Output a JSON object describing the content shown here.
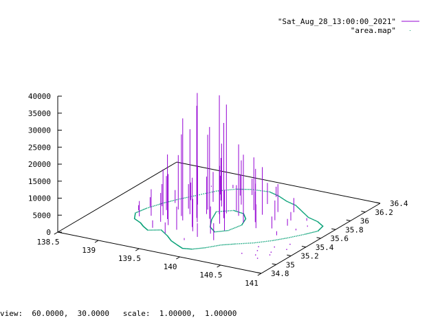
{
  "status_bar": {
    "view_text": "view:  60.0000,  30.0000   scale:  1.00000,  1.00000"
  },
  "chart_data": {
    "type": "scatter",
    "title": "",
    "view": {
      "rot_x": 60,
      "rot_z": 30,
      "scale": 1,
      "scale_z": 1
    },
    "xlabel": "",
    "ylabel": "",
    "zlabel": "",
    "xlim": [
      138.5,
      141
    ],
    "ylim": [
      34.8,
      36.4
    ],
    "zlim": [
      0,
      40000
    ],
    "x_ticks": [
      "138.5",
      "139",
      "139.5",
      "140",
      "140.5",
      "141"
    ],
    "y_ticks": [
      "34.8",
      "35",
      "35.2",
      "35.4",
      "35.6",
      "35.8",
      "36",
      "36.2",
      "36.4"
    ],
    "z_ticks": [
      "0",
      "5000",
      "10000",
      "15000",
      "20000",
      "25000",
      "30000",
      "35000",
      "40000"
    ],
    "legend": {
      "position": "top-right"
    },
    "series": [
      {
        "name": "\"Sat_Aug_28_13:00:00_2021\"",
        "color": "#9400d3",
        "style": "impulses",
        "points": [
          [
            139.62,
            35.45,
            38000
          ],
          [
            139.7,
            35.66,
            35000
          ],
          [
            139.55,
            35.52,
            33000
          ],
          [
            139.46,
            35.43,
            30000
          ],
          [
            139.75,
            35.7,
            32000
          ],
          [
            139.43,
            35.56,
            25000
          ],
          [
            139.8,
            35.61,
            28000
          ],
          [
            139.68,
            35.55,
            27000
          ],
          [
            139.38,
            35.5,
            24000
          ],
          [
            139.52,
            35.7,
            22000
          ],
          [
            139.9,
            35.7,
            21000
          ],
          [
            140.05,
            35.6,
            20000
          ],
          [
            139.3,
            35.4,
            19000
          ],
          [
            139.6,
            35.8,
            18500
          ],
          [
            139.85,
            35.5,
            17000
          ],
          [
            139.25,
            35.6,
            16000
          ],
          [
            139.95,
            35.85,
            15500
          ],
          [
            139.4,
            35.3,
            15000
          ],
          [
            139.65,
            35.35,
            14500
          ],
          [
            140.1,
            35.8,
            14000
          ],
          [
            139.2,
            35.45,
            13500
          ],
          [
            139.75,
            35.9,
            13000
          ],
          [
            139.5,
            35.9,
            12500
          ],
          [
            140.0,
            35.4,
            12000
          ],
          [
            139.35,
            35.75,
            11500
          ],
          [
            139.58,
            35.62,
            11000
          ],
          [
            139.88,
            35.95,
            10500
          ],
          [
            139.15,
            35.55,
            10000
          ],
          [
            139.72,
            35.28,
            9500
          ],
          [
            140.15,
            35.65,
            9000
          ],
          [
            139.45,
            35.85,
            8800
          ],
          [
            139.28,
            35.33,
            8500
          ],
          [
            140.2,
            35.9,
            8200
          ],
          [
            139.92,
            35.3,
            8000
          ],
          [
            139.1,
            35.4,
            7800
          ],
          [
            139.8,
            35.78,
            7500
          ],
          [
            139.33,
            35.65,
            7200
          ],
          [
            140.25,
            35.55,
            7000
          ],
          [
            139.55,
            35.25,
            6800
          ],
          [
            139.05,
            35.6,
            6500
          ],
          [
            139.98,
            36.0,
            6200
          ],
          [
            139.6,
            36.05,
            6000
          ],
          [
            140.3,
            35.75,
            5800
          ],
          [
            139.4,
            36.0,
            5500
          ],
          [
            139.22,
            35.8,
            5200
          ],
          [
            140.05,
            35.2,
            5000
          ],
          [
            139.7,
            36.1,
            4800
          ],
          [
            139.0,
            35.35,
            4500
          ],
          [
            140.35,
            35.95,
            4200
          ],
          [
            139.85,
            35.2,
            4000
          ],
          [
            139.12,
            35.7,
            3800
          ],
          [
            140.4,
            35.6,
            3500
          ],
          [
            139.5,
            35.15,
            3200
          ],
          [
            139.95,
            36.15,
            3000
          ],
          [
            138.95,
            35.55,
            2800
          ],
          [
            140.45,
            35.8,
            2500
          ],
          [
            139.3,
            35.2,
            2200
          ],
          [
            140.5,
            35.7,
            2000
          ],
          [
            139.65,
            36.2,
            1800
          ],
          [
            138.9,
            35.45,
            1500
          ],
          [
            140.55,
            35.5,
            1200
          ],
          [
            139.42,
            36.15,
            1000
          ],
          [
            140.6,
            35.85,
            800
          ],
          [
            139.78,
            35.1,
            600
          ],
          [
            140.65,
            35.65,
            500
          ],
          [
            140.7,
            35.75,
            400
          ],
          [
            139.2,
            36.1,
            300
          ]
        ]
      },
      {
        "name": "\"area.map\"",
        "color": "#009e73",
        "style": "dots",
        "outline": [
          [
            139.6,
            36.2
          ],
          [
            139.45,
            36.15
          ],
          [
            139.3,
            36.05
          ],
          [
            139.18,
            35.9
          ],
          [
            139.08,
            35.78
          ],
          [
            139.0,
            35.66
          ],
          [
            138.93,
            35.52
          ],
          [
            138.9,
            35.4
          ],
          [
            138.98,
            35.3
          ],
          [
            139.1,
            35.25
          ],
          [
            139.18,
            35.2
          ],
          [
            139.28,
            35.15
          ],
          [
            139.4,
            35.2
          ],
          [
            139.55,
            35.12
          ],
          [
            139.66,
            35.05
          ],
          [
            139.78,
            35.0
          ],
          [
            139.88,
            34.96
          ],
          [
            139.98,
            34.98
          ],
          [
            140.08,
            35.05
          ],
          [
            140.18,
            35.15
          ],
          [
            140.3,
            35.22
          ],
          [
            140.45,
            35.3
          ],
          [
            140.58,
            35.4
          ],
          [
            140.68,
            35.5
          ],
          [
            140.78,
            35.62
          ],
          [
            140.85,
            35.72
          ],
          [
            140.82,
            35.82
          ],
          [
            140.7,
            35.88
          ],
          [
            140.55,
            35.92
          ],
          [
            140.4,
            36.0
          ],
          [
            140.25,
            36.08
          ],
          [
            140.1,
            36.12
          ],
          [
            139.95,
            36.18
          ],
          [
            139.8,
            36.22
          ],
          [
            139.6,
            36.2
          ]
        ],
        "inner": [
          [
            139.62,
            35.7
          ],
          [
            139.7,
            35.55
          ],
          [
            139.8,
            35.42
          ],
          [
            139.92,
            35.35
          ],
          [
            140.02,
            35.42
          ],
          [
            140.06,
            35.56
          ],
          [
            140.0,
            35.68
          ],
          [
            139.9,
            35.76
          ],
          [
            139.76,
            35.78
          ],
          [
            139.62,
            35.7
          ]
        ],
        "scatter": [
          [
            140.7,
            35.3
          ],
          [
            140.75,
            35.2
          ],
          [
            140.6,
            35.18
          ],
          [
            140.8,
            35.4
          ],
          [
            140.65,
            35.1
          ],
          [
            140.55,
            35.25
          ],
          [
            140.72,
            35.05
          ],
          [
            140.85,
            35.3
          ],
          [
            140.5,
            35.08
          ],
          [
            140.78,
            35.15
          ]
        ]
      }
    ]
  }
}
